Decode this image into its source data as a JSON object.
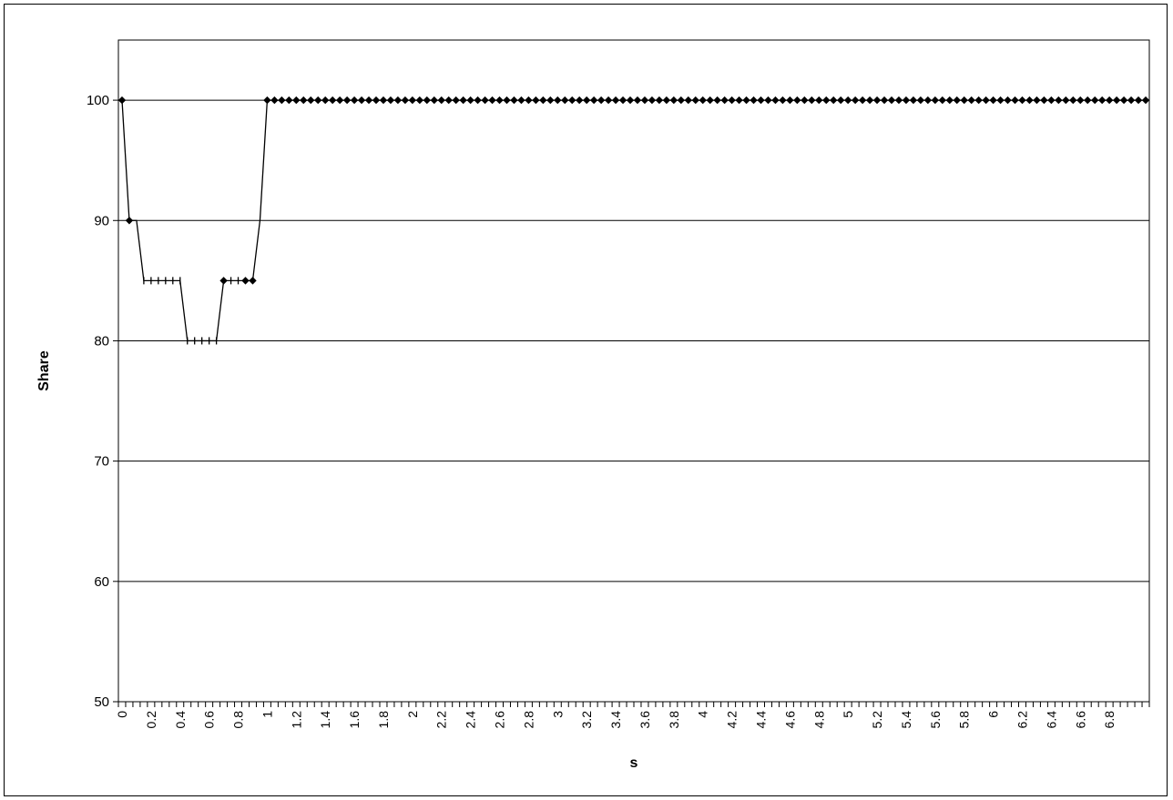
{
  "chart_data": {
    "type": "line",
    "title": "",
    "xlabel": "s",
    "ylabel": "Share",
    "ylim": [
      50,
      105
    ],
    "yticks": [
      50,
      60,
      70,
      80,
      90,
      100
    ],
    "grid": "horizontal",
    "legend": "none",
    "x_tick_labels": [
      "0",
      "0.2",
      "0.4",
      "0.6",
      "0.8",
      "1",
      "1.2",
      "1.4",
      "1.6",
      "1.8",
      "2",
      "2.2",
      "2.4",
      "2.6",
      "2.8",
      "3",
      "3.2",
      "3.4",
      "3.6",
      "3.8",
      "4",
      "4.2",
      "4.4",
      "4.6",
      "4.8",
      "5",
      "5.2",
      "5.4",
      "5.6",
      "5.8",
      "6",
      "6.2",
      "6.4",
      "6.6",
      "6.8"
    ],
    "x_step": 0.05,
    "series": [
      {
        "values": [
          100,
          90,
          90,
          85,
          85,
          85,
          85,
          85,
          85,
          80,
          80,
          80,
          80,
          80,
          85,
          85,
          85,
          85,
          85,
          90,
          100,
          100,
          100,
          100,
          100,
          100,
          100,
          100,
          100,
          100,
          100,
          100,
          100,
          100,
          100,
          100,
          100,
          100,
          100,
          100,
          100,
          100,
          100,
          100,
          100,
          100,
          100,
          100,
          100,
          100,
          100,
          100,
          100,
          100,
          100,
          100,
          100,
          100,
          100,
          100,
          100,
          100,
          100,
          100,
          100,
          100,
          100,
          100,
          100,
          100,
          100,
          100,
          100,
          100,
          100,
          100,
          100,
          100,
          100,
          100,
          100,
          100,
          100,
          100,
          100,
          100,
          100,
          100,
          100,
          100,
          100,
          100,
          100,
          100,
          100,
          100,
          100,
          100,
          100,
          100,
          100,
          100,
          100,
          100,
          100,
          100,
          100,
          100,
          100,
          100,
          100,
          100,
          100,
          100,
          100,
          100,
          100,
          100,
          100,
          100,
          100,
          100,
          100,
          100,
          100,
          100,
          100,
          100,
          100,
          100,
          100,
          100,
          100,
          100,
          100,
          100,
          100,
          100,
          100,
          100,
          100,
          100
        ],
        "marker_styles": [
          "diamond",
          "diamond",
          "none",
          "dash",
          "dash",
          "dash",
          "dash",
          "dash",
          "dash",
          "dash",
          "dash",
          "dash",
          "dash",
          "dash",
          "diamond",
          "dash",
          "dash",
          "diamond",
          "diamond",
          "none"
        ],
        "color": "#000000"
      }
    ]
  }
}
